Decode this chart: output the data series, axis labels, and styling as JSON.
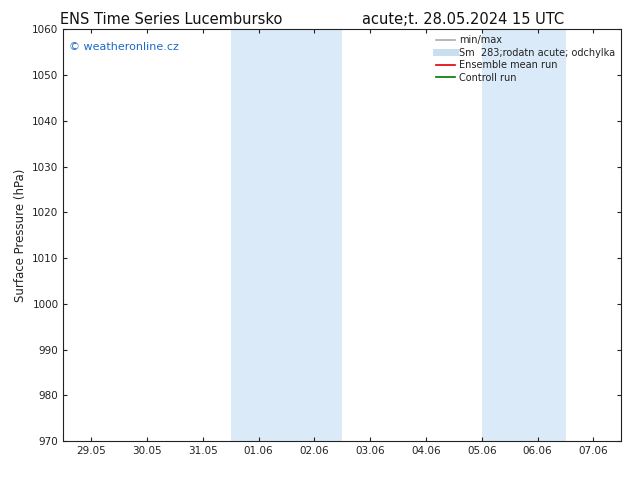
{
  "title_left": "ENS Time Series Lucembursko",
  "title_right": "acute;t. 28.05.2024 15 UTC",
  "ylabel": "Surface Pressure (hPa)",
  "ylim": [
    970,
    1060
  ],
  "yticks": [
    970,
    980,
    990,
    1000,
    1010,
    1020,
    1030,
    1040,
    1050,
    1060
  ],
  "x_tick_labels": [
    "29.05",
    "30.05",
    "31.05",
    "01.06",
    "02.06",
    "03.06",
    "04.06",
    "05.06",
    "06.06",
    "07.06"
  ],
  "x_tick_positions": [
    0,
    1,
    2,
    3,
    4,
    5,
    6,
    7,
    8,
    9
  ],
  "xlim": [
    -0.5,
    9.5
  ],
  "shade_bands": [
    {
      "x_start": 2.5,
      "x_end": 4.5
    },
    {
      "x_start": 7.0,
      "x_end": 8.5
    }
  ],
  "shade_color": "#daeaf8",
  "background_color": "#ffffff",
  "watermark_text": "© weatheronline.cz",
  "watermark_color": "#1a6ac7",
  "legend_entries": [
    {
      "label": "min/max",
      "color": "#aaaaaa",
      "lw": 1.2
    },
    {
      "label": "Sm  283;rodatn acute; odchylka",
      "color": "#c8dff0",
      "lw": 5
    },
    {
      "label": "Ensemble mean run",
      "color": "#dd0000",
      "lw": 1.2
    },
    {
      "label": "Controll run",
      "color": "#007700",
      "lw": 1.2
    }
  ],
  "tick_color": "#222222",
  "spine_color": "#222222",
  "title_fontsize": 10.5,
  "axis_label_fontsize": 8.5,
  "tick_fontsize": 7.5,
  "watermark_fontsize": 8
}
